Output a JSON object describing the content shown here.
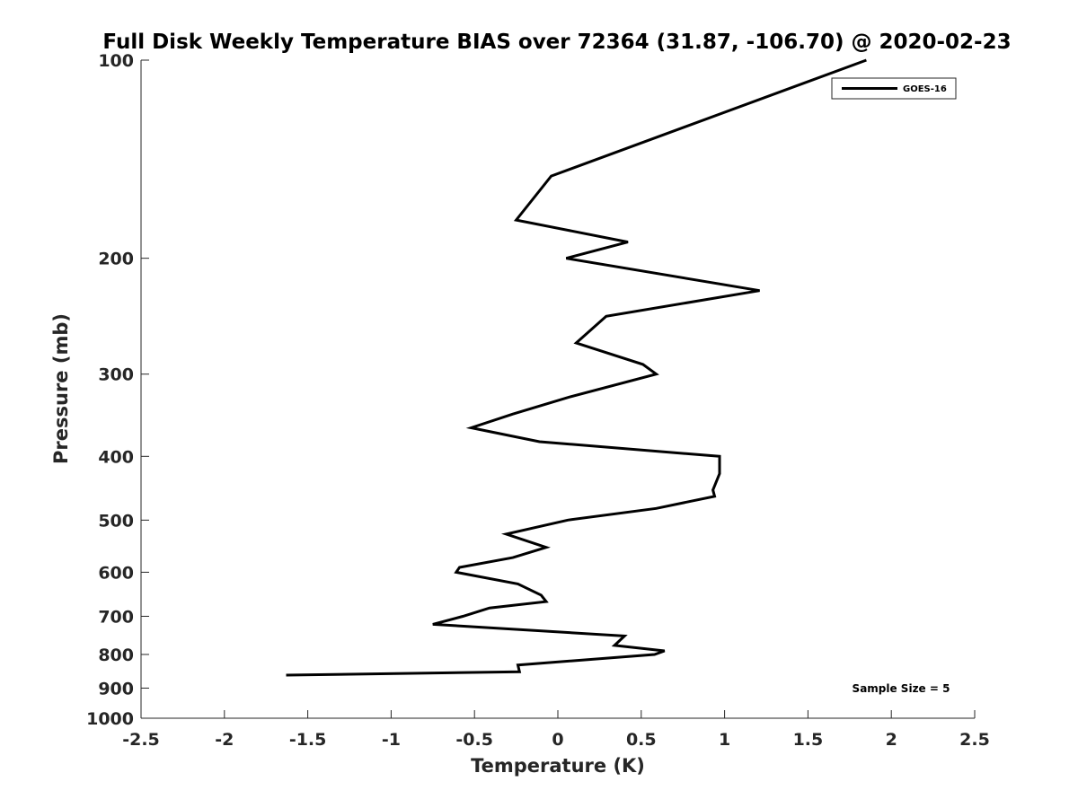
{
  "chart_data": {
    "type": "line",
    "title": "Full Disk Weekly Temperature BIAS over 72364 (31.87, -106.70) @ 2020-02-23",
    "xlabel": "Temperature (K)",
    "ylabel": "Pressure (mb)",
    "xlim": [
      -2.5,
      2.5
    ],
    "ylim": [
      100,
      1000
    ],
    "yscale": "log",
    "y_reversed": true,
    "grid": false,
    "legend_position": "top-right",
    "x_ticks": [
      -2.5,
      -2,
      -1.5,
      -1,
      -0.5,
      0,
      0.5,
      1,
      1.5,
      2,
      2.5
    ],
    "x_tick_labels": [
      "-2.5",
      "-2",
      "-1.5",
      "-1",
      "-0.5",
      "0",
      "0.5",
      "1",
      "1.5",
      "2",
      "2.5"
    ],
    "y_ticks": [
      100,
      200,
      300,
      400,
      500,
      600,
      700,
      800,
      900,
      1000
    ],
    "y_tick_labels": [
      "100",
      "200",
      "300",
      "400",
      "500",
      "600",
      "700",
      "800",
      "900",
      "1000"
    ],
    "series": [
      {
        "name": "GOES-16",
        "color": "#000000",
        "points": [
          {
            "x": 1.85,
            "y": 100
          },
          {
            "x": -0.04,
            "y": 150
          },
          {
            "x": -0.25,
            "y": 175
          },
          {
            "x": 0.42,
            "y": 189
          },
          {
            "x": 0.05,
            "y": 200
          },
          {
            "x": 1.21,
            "y": 224
          },
          {
            "x": 0.29,
            "y": 245
          },
          {
            "x": 0.11,
            "y": 269
          },
          {
            "x": 0.51,
            "y": 290
          },
          {
            "x": 0.59,
            "y": 300
          },
          {
            "x": 0.07,
            "y": 325
          },
          {
            "x": -0.27,
            "y": 345
          },
          {
            "x": -0.52,
            "y": 362
          },
          {
            "x": -0.11,
            "y": 380
          },
          {
            "x": 0.97,
            "y": 400
          },
          {
            "x": 0.97,
            "y": 425
          },
          {
            "x": 0.93,
            "y": 450
          },
          {
            "x": 0.94,
            "y": 460
          },
          {
            "x": 0.59,
            "y": 480
          },
          {
            "x": 0.06,
            "y": 500
          },
          {
            "x": -0.31,
            "y": 525
          },
          {
            "x": -0.07,
            "y": 550
          },
          {
            "x": -0.27,
            "y": 570
          },
          {
            "x": -0.59,
            "y": 590
          },
          {
            "x": -0.61,
            "y": 600
          },
          {
            "x": -0.24,
            "y": 625
          },
          {
            "x": -0.1,
            "y": 650
          },
          {
            "x": -0.07,
            "y": 665
          },
          {
            "x": -0.41,
            "y": 680
          },
          {
            "x": -0.57,
            "y": 700
          },
          {
            "x": -0.75,
            "y": 720
          },
          {
            "x": 0.4,
            "y": 750
          },
          {
            "x": 0.34,
            "y": 775
          },
          {
            "x": 0.64,
            "y": 790
          },
          {
            "x": 0.58,
            "y": 800
          },
          {
            "x": -0.24,
            "y": 830
          },
          {
            "x": -0.23,
            "y": 850
          },
          {
            "x": -1.63,
            "y": 860
          }
        ]
      }
    ],
    "annotation": "Sample Size = 5"
  }
}
